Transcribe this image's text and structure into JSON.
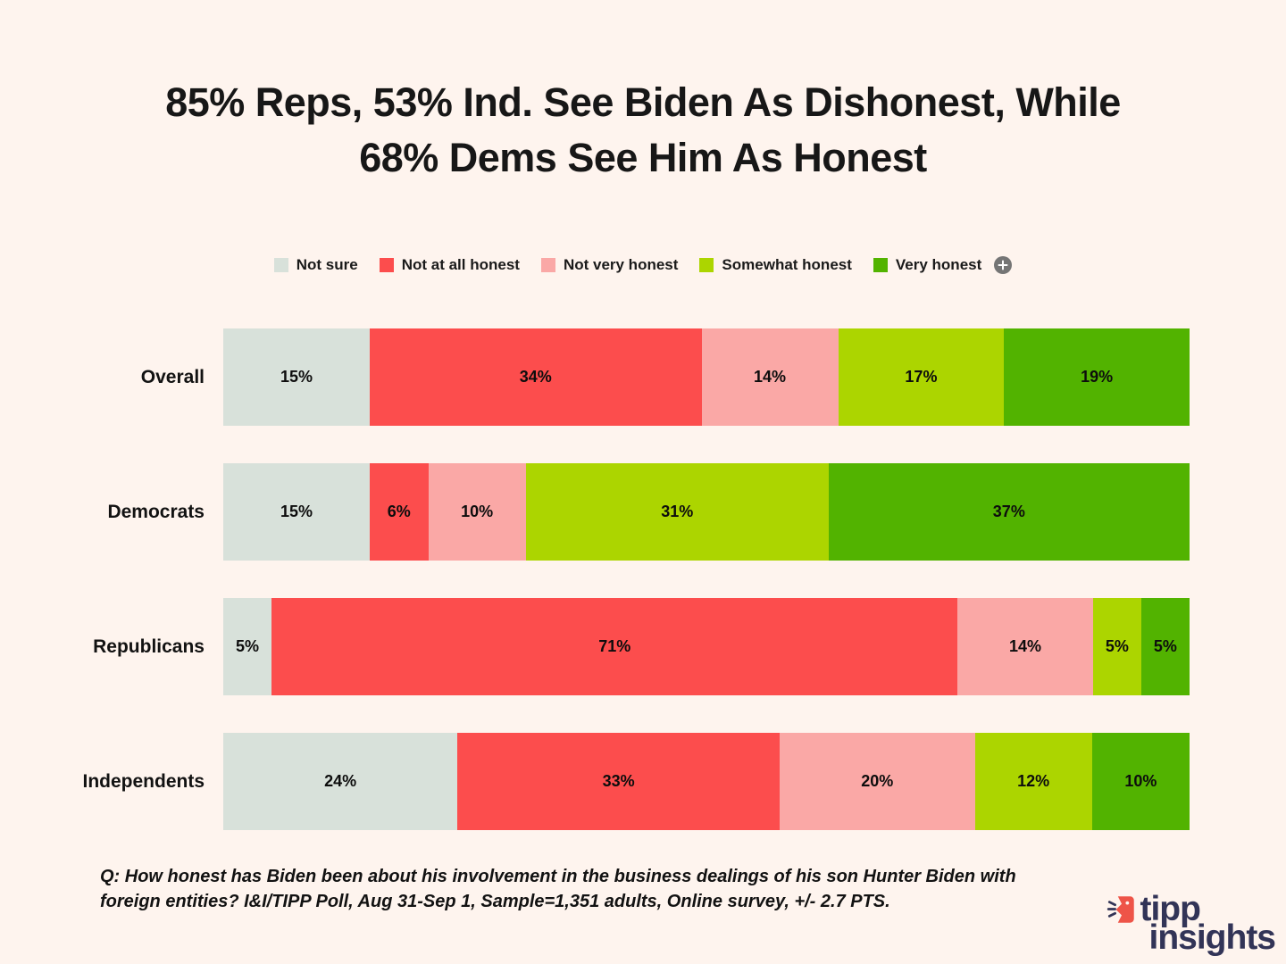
{
  "page": {
    "background_color": "#FEF4EE"
  },
  "title": {
    "line1": "85% Reps, 53% Ind. See Biden As Dishonest, While",
    "line2": "68% Dems See Him As Honest"
  },
  "chart_data": {
    "type": "bar",
    "orientation": "horizontal",
    "stacked": true,
    "unit": "%",
    "xlim": [
      0,
      100
    ],
    "legend_position": "top",
    "value_labels": "inside",
    "categories": [
      "Overall",
      "Democrats",
      "Republicans",
      "Independents"
    ],
    "series": [
      {
        "name": "Not sure",
        "color": "#D8E1DA",
        "values": [
          15,
          15,
          5,
          24
        ]
      },
      {
        "name": "Not at all honest",
        "color": "#FC4D4D",
        "values": [
          34,
          6,
          71,
          33
        ]
      },
      {
        "name": "Not very honest",
        "color": "#FAA8A6",
        "values": [
          14,
          10,
          14,
          20
        ]
      },
      {
        "name": "Somewhat honest",
        "color": "#ACD500",
        "values": [
          17,
          31,
          5,
          12
        ]
      },
      {
        "name": "Very honest",
        "color": "#52B300",
        "values": [
          19,
          37,
          5,
          10
        ]
      }
    ]
  },
  "footer": {
    "question": "Q: How honest has Biden been about his involvement in the business dealings of his son Hunter Biden with\nforeign entities? I&I/TIPP Poll, Aug 31-Sep 1, Sample=1,351 adults, Online survey, +/- 2.7 PTS."
  },
  "logo": {
    "word1": "tipp",
    "word2": "insights",
    "text_color": "#323457",
    "icon_color": "#EE5448"
  }
}
